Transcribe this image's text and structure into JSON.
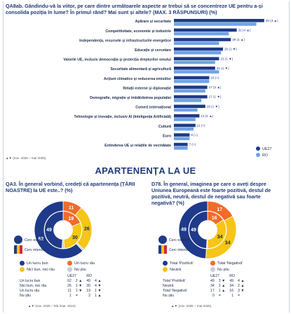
{
  "q1": {
    "title": "QA8ab. Gândindu-vă la viitor, pe care dintre următoarele aspecte ar trebui să se concentreze UE pentru a-și consolida poziția în lume? În primul rând? Mai sunt și altele? (MAX. 3 RĂSPUNSURI) (%)",
    "legend": [
      {
        "label": "UE27",
        "color": "#1f3a8a"
      },
      {
        "label": "RO",
        "color": "#6fa3e8"
      }
    ],
    "footnote": "▲▼ (nov. 2025 – mai 2025)"
  },
  "section_title": "APARTENENȚA LA UE",
  "q2": {
    "title": "QA3. În general vorbind, credeți că apartenența (ȚĂRII NOASTRE) la UE este..? (%)",
    "ring_outer_label": "Cerc exterior",
    "ring_inner_label": "Cerc interior",
    "legend": [
      {
        "label": "Un lucru bun",
        "color": "#1f3a8a"
      },
      {
        "label": "Un lucru rău",
        "color": "#f26b2a"
      },
      {
        "label": "Nici bun, nici rău",
        "color": "#f5c518"
      },
      {
        "label": "Nu știu",
        "color": "#c8cdd6"
      }
    ],
    "table_header": [
      "UE27",
      "RO"
    ],
    "table_rows": [
      {
        "label": "Un lucru bun",
        "ue": "62",
        "ue_d": "2 ▲",
        "ro": "49",
        "ro_d": "4 ▲"
      },
      {
        "label": "Nici bun, nici rău",
        "ue": "26",
        "ue_d": "1 ▼",
        "ro": "30",
        "ro_d": "4 ▼"
      },
      {
        "label": "Un lucru rău",
        "ue": "11",
        "ue_d": "1 ▼",
        "ro": "19",
        "ro_d": "1 ▼"
      },
      {
        "label": "Nu știu",
        "ue": "1",
        "ue_d": "=",
        "ro": "2",
        "ro_d": "1 ▲"
      }
    ],
    "footnote": "▲▼ (nov. 2025 – feb./mar. 2024)"
  },
  "q3": {
    "title": "D78. În general, imaginea pe care o aveți despre Uniunea Europeană este foarte pozitivă, destul de pozitivă, neutră, destul de negativă sau foarte negativă? (%)",
    "ring_outer_label": "Cerc exterior",
    "ring_inner_label": "Cerc interior",
    "legend": [
      {
        "label": "Total 'Pozitivă'",
        "color": "#1f3a8a"
      },
      {
        "label": "Total 'Negativă'",
        "color": "#f26b2a"
      },
      {
        "label": "Neutră",
        "color": "#f5c518"
      },
      {
        "label": "Nu știu",
        "color": "#c8cdd6"
      }
    ],
    "table_header": [
      "UE27",
      "RO"
    ],
    "table_rows": [
      {
        "label": "Total 'Pozitivă'",
        "ue": "49",
        "ue_d": "3 ▼",
        "ro": "49",
        "ro_d": "4 ▲"
      },
      {
        "label": "Neutră",
        "ue": "34",
        "ue_d": "2 ▲",
        "ro": "34",
        "ro_d": "2 ▲"
      },
      {
        "label": "Total 'Negativă'",
        "ue": "17",
        "ue_d": "1 ▲",
        "ro": "16",
        "ro_d": "3 ▼"
      },
      {
        "label": "Nu știu",
        "ue": "0",
        "ue_d": "=",
        "ro": "1",
        "ro_d": "="
      }
    ],
    "footnote": "▲▼ (nov. 2025 – mai 2025)"
  },
  "chart_data": [
    {
      "type": "bar",
      "orientation": "horizontal",
      "categories": [
        "Apărare și securitate",
        "Competitivitate, economie și industrie",
        "Independența, resursele și infrastructurile energetice",
        "Educație și cercetare",
        "Valorile UE, inclusiv democrația și protecția drepturilor omului",
        "Securitate alimentară și agricultură",
        "Acțiuni climatice și reducerea emisiilor",
        "Relații externe și diplomație",
        "Demografie, migrație și îmbătrânirea populației",
        "Comerț internațional",
        "Tehnologie și inovație, inclusiv AI (Inteligența Artificială)",
        "Cultură",
        "Euro",
        "Extinderea UE și relațiile de vecinătate"
      ],
      "series": [
        {
          "name": "UE27",
          "values": [
            46,
            32,
            29,
            25,
            23,
            21,
            18,
            17,
            17,
            16,
            13,
            11,
            8,
            7
          ],
          "deltas": [
            "3 ▲",
            "4 ▲",
            "1 ▲",
            "1 ▼",
            "1 ▼",
            "1 ▼",
            "=",
            "2 ▲",
            "1 ▼",
            "1 ▼",
            "1 ▲",
            "=",
            "=",
            "="
          ]
        },
        {
          "name": "RO",
          "values": [
            42,
            28,
            23,
            24,
            21,
            23,
            18,
            16,
            14,
            12,
            11,
            10,
            8,
            7
          ]
        }
      ],
      "xlim": [
        0,
        50
      ]
    },
    {
      "type": "pie",
      "subtype": "donut-double",
      "categories": [
        "Un lucru bun",
        "Un lucru rău",
        "Nici bun, nici rău",
        "Nu știu"
      ],
      "series": [
        {
          "name": "Cerc exterior",
          "values": [
            62,
            11,
            26,
            1
          ]
        },
        {
          "name": "Cerc interior",
          "values": [
            49,
            19,
            30,
            2
          ]
        }
      ]
    },
    {
      "type": "pie",
      "subtype": "donut-double",
      "categories": [
        "Total 'Pozitivă'",
        "Total 'Negativă'",
        "Neutră",
        "Nu știu"
      ],
      "series": [
        {
          "name": "Cerc exterior",
          "values": [
            49,
            17,
            34,
            0
          ]
        },
        {
          "name": "Cerc interior",
          "values": [
            49,
            16,
            34,
            1
          ]
        }
      ]
    }
  ]
}
